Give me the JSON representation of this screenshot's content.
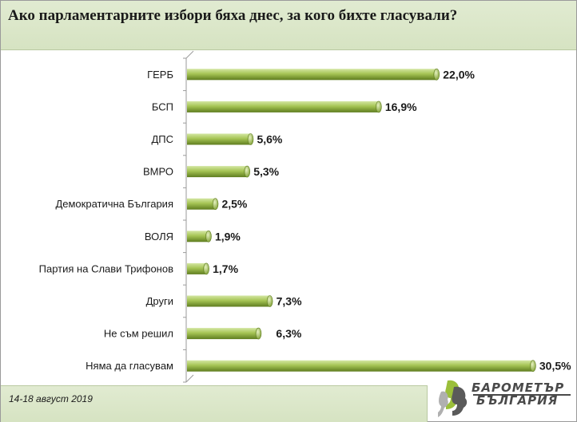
{
  "header": {
    "title": "Ако парламентарните избори бяха днес, за кого бихте гласували?"
  },
  "footer": {
    "date": "14-18 август 2019"
  },
  "logo": {
    "line1": "БАРОМЕТЪР",
    "line2": "БЪЛГАРИЯ"
  },
  "colors": {
    "bar_light": "#d4e7a3",
    "bar_mid": "#a5c454",
    "bar_dark": "#5f7d1f",
    "panel": "#d9e6c6"
  },
  "chart_data": {
    "type": "bar",
    "orientation": "horizontal",
    "title": "Ако парламентарните избори бяха днес, за кого бихте гласували?",
    "categories": [
      "ГЕРБ",
      "БСП",
      "ДПС",
      "ВМРО",
      "Демократична България",
      "ВОЛЯ",
      "Партия на Слави Трифонов",
      "Други",
      "Не съм решил",
      "Няма да гласувам"
    ],
    "values": [
      22.0,
      16.9,
      5.6,
      5.3,
      2.5,
      1.9,
      1.7,
      7.3,
      6.3,
      30.5
    ],
    "labels": [
      "22,0%",
      "16,9%",
      "5,6%",
      "5,3%",
      "2,5%",
      "1,9%",
      "1,7%",
      "7,3%",
      "6,3%",
      "30,5%"
    ],
    "unit": "%",
    "xlim": [
      0,
      31
    ],
    "grid": false,
    "legend": "none"
  }
}
